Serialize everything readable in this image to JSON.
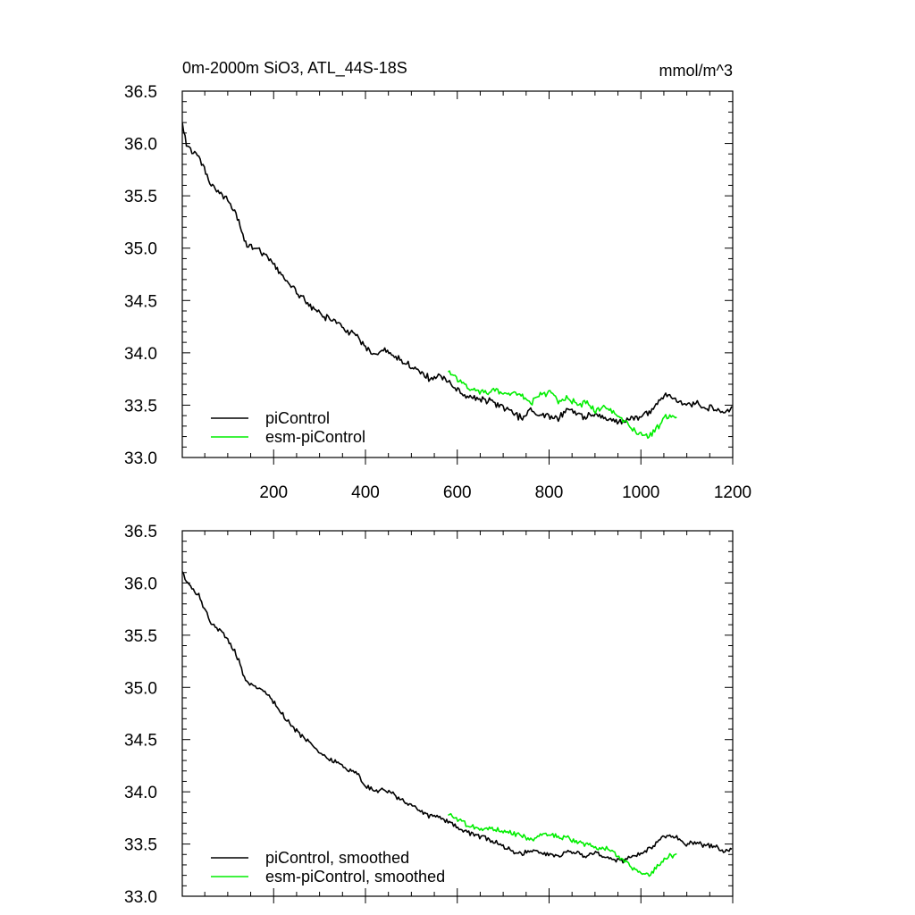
{
  "chart_data": [
    {
      "type": "line",
      "title": "0m-2000m SiO3, ATL_44S-18S",
      "units": "mmol/m^3",
      "xlabel": "",
      "ylabel": "",
      "xlim": [
        1,
        1200
      ],
      "ylim": [
        33.0,
        36.5
      ],
      "xticks": [
        200,
        400,
        600,
        800,
        1000,
        1200
      ],
      "xtick_labels": [
        "200",
        "400",
        "600",
        "800",
        "1000",
        "1200"
      ],
      "yticks": [
        33.0,
        33.5,
        34.0,
        34.5,
        35.0,
        35.5,
        36.0,
        36.5
      ],
      "ytick_labels": [
        "33.0",
        "33.5",
        "34.0",
        "34.5",
        "35.0",
        "35.5",
        "36.0",
        "36.5"
      ],
      "legend_position": "bottom-left",
      "series": [
        {
          "name": "piControl",
          "color": "#000000",
          "x": [
            1,
            10,
            20,
            40,
            60,
            80,
            100,
            120,
            140,
            160,
            180,
            200,
            220,
            240,
            260,
            280,
            300,
            320,
            340,
            360,
            380,
            400,
            420,
            440,
            460,
            480,
            500,
            520,
            540,
            560,
            580,
            600,
            620,
            640,
            660,
            680,
            700,
            720,
            740,
            760,
            780,
            800,
            820,
            840,
            860,
            880,
            900,
            920,
            940,
            960,
            980,
            1000,
            1020,
            1040,
            1060,
            1080,
            1100,
            1120,
            1140,
            1160,
            1180,
            1200
          ],
          "y": [
            36.2,
            36.0,
            35.95,
            35.85,
            35.62,
            35.55,
            35.45,
            35.3,
            35.05,
            35.0,
            34.95,
            34.85,
            34.72,
            34.62,
            34.55,
            34.45,
            34.38,
            34.32,
            34.28,
            34.2,
            34.18,
            34.05,
            33.98,
            34.02,
            33.98,
            33.92,
            33.88,
            33.82,
            33.75,
            33.78,
            33.72,
            33.65,
            33.6,
            33.58,
            33.55,
            33.52,
            33.48,
            33.42,
            33.38,
            33.44,
            33.42,
            33.4,
            33.38,
            33.46,
            33.42,
            33.38,
            33.42,
            33.38,
            33.36,
            33.33,
            33.38,
            33.4,
            33.45,
            33.55,
            33.6,
            33.56,
            33.5,
            33.52,
            33.46,
            33.48,
            33.42,
            33.48
          ]
        },
        {
          "name": "esm-piControl",
          "color": "#00ee00",
          "x": [
            580,
            600,
            620,
            640,
            660,
            680,
            700,
            720,
            740,
            760,
            780,
            800,
            820,
            840,
            860,
            880,
            900,
            920,
            940,
            960,
            980,
            1000,
            1020,
            1040,
            1060,
            1080
          ],
          "y": [
            33.8,
            33.75,
            33.68,
            33.65,
            33.62,
            33.65,
            33.6,
            33.62,
            33.58,
            33.52,
            33.6,
            33.62,
            33.55,
            33.58,
            33.5,
            33.52,
            33.45,
            33.48,
            33.42,
            33.35,
            33.28,
            33.22,
            33.2,
            33.32,
            33.4,
            33.38
          ]
        }
      ]
    },
    {
      "type": "line",
      "title": "",
      "xlabel": "",
      "ylabel": "",
      "xlim": [
        1,
        1200
      ],
      "ylim": [
        33.0,
        36.5
      ],
      "yticks": [
        33.0,
        33.5,
        34.0,
        34.5,
        35.0,
        35.5,
        36.0,
        36.5
      ],
      "ytick_labels": [
        "33.0",
        "33.5",
        "34.0",
        "34.5",
        "35.0",
        "35.5",
        "36.0",
        "36.5"
      ],
      "legend_position": "bottom-left",
      "series": [
        {
          "name": "piControl, smoothed",
          "color": "#000000",
          "x": [
            1,
            10,
            20,
            40,
            60,
            80,
            100,
            120,
            140,
            160,
            180,
            200,
            220,
            240,
            260,
            280,
            300,
            320,
            340,
            360,
            380,
            400,
            420,
            440,
            460,
            480,
            500,
            520,
            540,
            560,
            580,
            600,
            620,
            640,
            660,
            680,
            700,
            720,
            740,
            760,
            780,
            800,
            820,
            840,
            860,
            880,
            900,
            920,
            940,
            960,
            980,
            1000,
            1020,
            1040,
            1060,
            1080,
            1100,
            1120,
            1140,
            1160,
            1180,
            1200
          ],
          "y": [
            36.12,
            36.02,
            35.96,
            35.86,
            35.64,
            35.56,
            35.46,
            35.3,
            35.06,
            35.0,
            34.96,
            34.86,
            34.74,
            34.62,
            34.54,
            34.46,
            34.38,
            34.32,
            34.28,
            34.22,
            34.18,
            34.06,
            34.0,
            34.02,
            33.98,
            33.92,
            33.88,
            33.82,
            33.76,
            33.76,
            33.72,
            33.66,
            33.62,
            33.58,
            33.56,
            33.52,
            33.48,
            33.44,
            33.4,
            33.44,
            33.42,
            33.4,
            33.38,
            33.44,
            33.42,
            33.38,
            33.42,
            33.38,
            33.36,
            33.34,
            33.38,
            33.4,
            33.46,
            33.54,
            33.58,
            33.56,
            33.5,
            33.52,
            33.48,
            33.48,
            33.42,
            33.46
          ]
        },
        {
          "name": "esm-piControl, smoothed",
          "color": "#00ee00",
          "x": [
            580,
            600,
            620,
            640,
            660,
            680,
            700,
            720,
            740,
            760,
            780,
            800,
            820,
            840,
            860,
            880,
            900,
            920,
            940,
            960,
            980,
            1000,
            1020,
            1040,
            1060,
            1080
          ],
          "y": [
            33.78,
            33.74,
            33.68,
            33.66,
            33.64,
            33.64,
            33.62,
            33.6,
            33.58,
            33.54,
            33.58,
            33.6,
            33.56,
            33.56,
            33.52,
            33.5,
            33.46,
            33.46,
            33.42,
            33.36,
            33.28,
            33.22,
            33.2,
            33.3,
            33.38,
            33.4
          ]
        }
      ]
    }
  ]
}
